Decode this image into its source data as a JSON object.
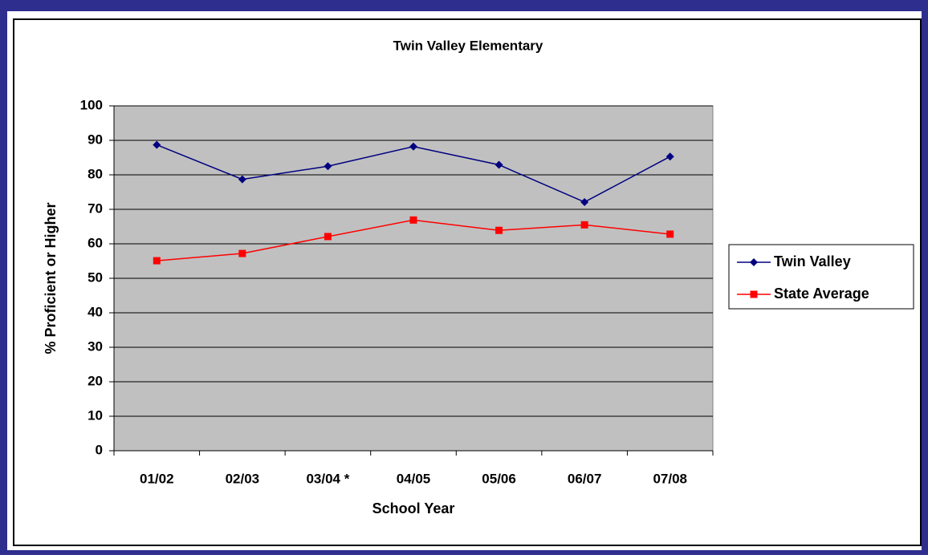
{
  "chart_data": {
    "type": "line",
    "title": "Twin Valley Elementary",
    "x_label": "School Year",
    "y_label": "% Proficient or Higher",
    "categories": [
      "01/02",
      "02/03",
      "03/04 *",
      "04/05",
      "05/06",
      "06/07",
      "07/08"
    ],
    "series": [
      {
        "name": "Twin Valley",
        "color": "#000080",
        "marker": "diamond",
        "values": [
          88.7,
          78.7,
          82.5,
          88.2,
          82.9,
          72.1,
          85.3
        ]
      },
      {
        "name": "State Average",
        "color": "#ff0000",
        "marker": "square",
        "values": [
          55.1,
          57.2,
          62.1,
          66.9,
          63.9,
          65.5,
          62.8
        ]
      }
    ],
    "ylim": [
      0,
      100
    ],
    "yticks": [
      0,
      10,
      20,
      30,
      40,
      50,
      60,
      70,
      80,
      90,
      100
    ],
    "grid": true,
    "legend": "right"
  }
}
